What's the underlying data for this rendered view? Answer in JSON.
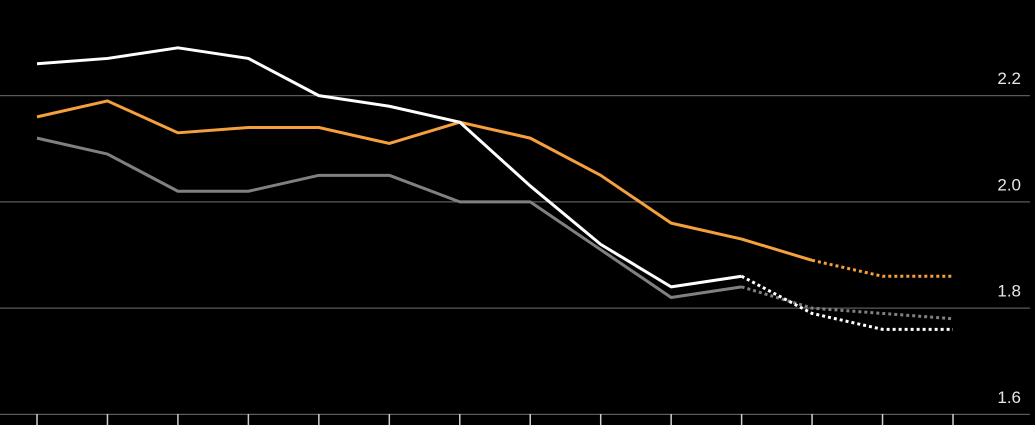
{
  "chart_data": {
    "type": "line",
    "categories": [
      null,
      null,
      null,
      null,
      null,
      null,
      null,
      null,
      null,
      null,
      null,
      null,
      null,
      null
    ],
    "series": [
      {
        "color": "#808080",
        "dashed_from": 10,
        "values": [
          2.12,
          2.09,
          2.02,
          2.02,
          2.05,
          2.05,
          2.0,
          2.0,
          1.91,
          1.82,
          1.84,
          1.8,
          1.79,
          1.78
        ]
      },
      {
        "color": "#f5a03c",
        "dashed_from": 11,
        "values": [
          2.16,
          2.19,
          2.13,
          2.14,
          2.14,
          2.11,
          2.15,
          2.12,
          2.05,
          1.96,
          1.93,
          1.89,
          1.86,
          1.86
        ]
      },
      {
        "color": "#ffffff",
        "dashed_from": 10,
        "values": [
          2.26,
          2.27,
          2.29,
          2.27,
          2.2,
          2.18,
          2.15,
          2.03,
          1.92,
          1.84,
          1.86,
          1.79,
          1.76,
          1.76
        ]
      }
    ],
    "ylim": [
      1.58,
      2.38
    ],
    "yticks": [
      1.6,
      1.8,
      {
        "value": 2,
        "label": "2.0"
      },
      2.2
    ],
    "grid": true
  }
}
